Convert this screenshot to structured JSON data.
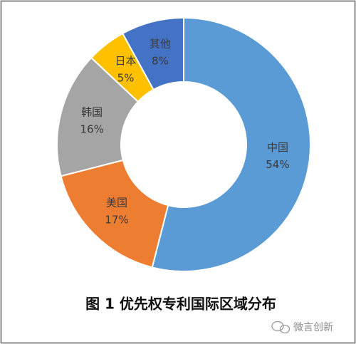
{
  "chart_data": {
    "type": "donut",
    "title": "图 1  优先权专利国际区域分布",
    "categories": [
      "中国",
      "美国",
      "韩国",
      "日本",
      "其他"
    ],
    "values": [
      54,
      17,
      16,
      5,
      8
    ],
    "value_labels": [
      "54%",
      "17%",
      "16%",
      "5%",
      "8%"
    ],
    "colors": [
      "#5b9bd5",
      "#ed7d31",
      "#a5a5a5",
      "#ffc000",
      "#4472c4"
    ]
  },
  "watermark": "微言创新"
}
